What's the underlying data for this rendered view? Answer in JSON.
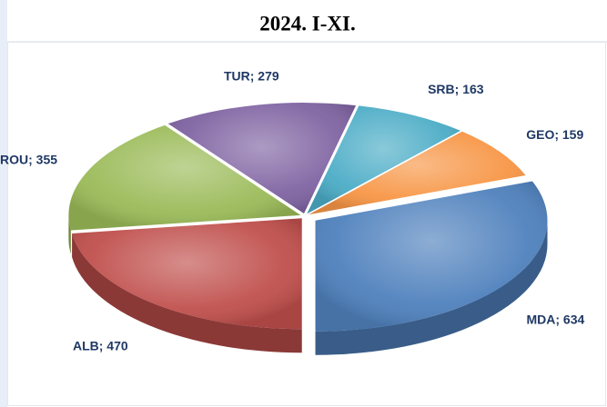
{
  "chart_data": {
    "type": "pie",
    "title": "2024. I-XI.",
    "categories": [
      "ALB",
      "ROU",
      "TUR",
      "SRB",
      "GEO",
      "MDA"
    ],
    "values": [
      470,
      355,
      279,
      163,
      159,
      634
    ],
    "value_labels": [
      "ALB; 470",
      "ROU; 355",
      "TUR; 279",
      "SRB; 163",
      "GEO; 159",
      "MDA; 634"
    ],
    "colors": [
      "#c0504d",
      "#9bbb59",
      "#8064a2",
      "#4bacc6",
      "#f79646",
      "#4f81bd"
    ]
  }
}
